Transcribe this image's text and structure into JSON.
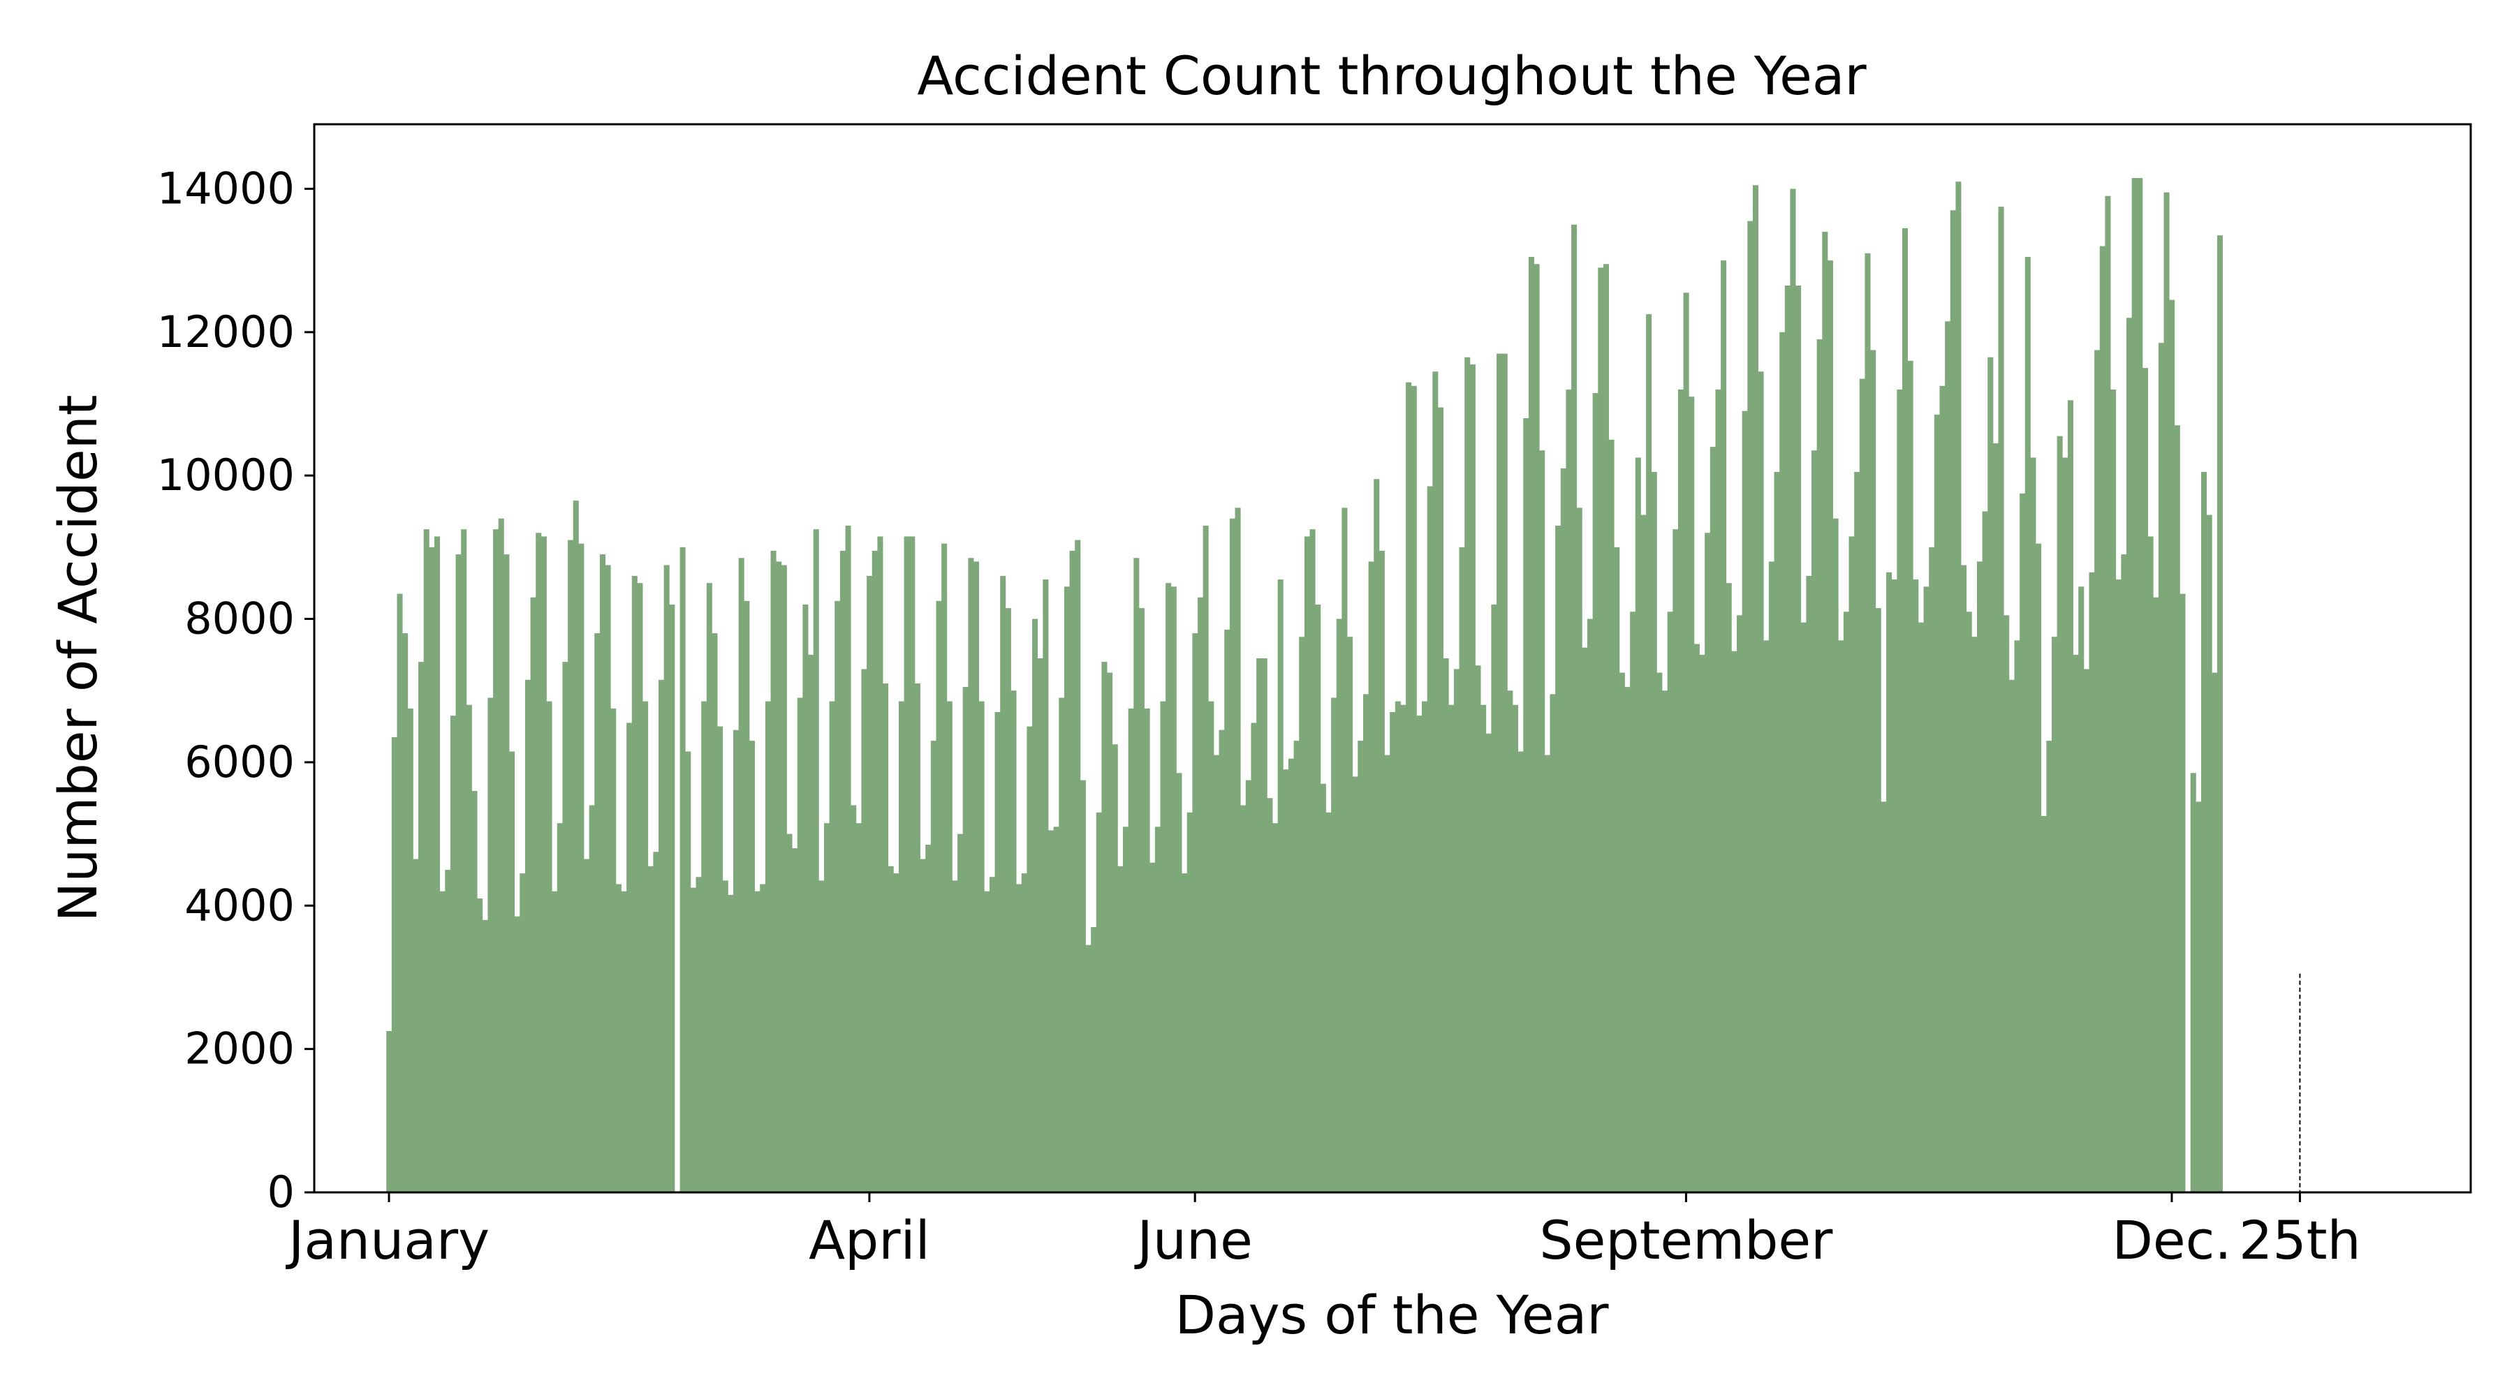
{
  "chart_data": {
    "type": "bar",
    "title": "Accident Count throughout the Year",
    "xlabel": "Days of the Year",
    "ylabel": "Number of Accident",
    "xlim": [
      -13,
      391
    ],
    "ylim": [
      0,
      14900
    ],
    "yticks": [
      0,
      2000,
      4000,
      6000,
      8000,
      10000,
      12000,
      14000
    ],
    "xticks": [
      {
        "day": 1,
        "label": "January"
      },
      {
        "day": 91,
        "label": "April"
      },
      {
        "day": 152,
        "label": "June"
      },
      {
        "day": 244,
        "label": "September"
      },
      {
        "day": 335,
        "label": "Dec."
      },
      {
        "day": 359,
        "label": "25th"
      }
    ],
    "marker_line": {
      "day": 359,
      "value": 3050,
      "style": "dashed"
    },
    "bar_color": "#7ea87a",
    "x_start": 1,
    "values": [
      2250,
      6350,
      8350,
      7800,
      6750,
      4650,
      7400,
      9250,
      9000,
      9150,
      4200,
      4500,
      6650,
      8900,
      9250,
      6800,
      5600,
      4100,
      3800,
      6900,
      9250,
      9400,
      8900,
      6150,
      3850,
      4450,
      7150,
      8300,
      9200,
      9150,
      6850,
      4200,
      5150,
      7400,
      9100,
      9650,
      9050,
      4650,
      5400,
      7800,
      8900,
      8750,
      6750,
      4300,
      4200,
      6550,
      8600,
      8500,
      6850,
      4550,
      4750,
      7150,
      8750,
      8200,
      0,
      9000,
      6150,
      4250,
      4400,
      6850,
      8500,
      7800,
      6500,
      4350,
      4150,
      6450,
      8850,
      8250,
      6300,
      4200,
      4300,
      6850,
      8950,
      8800,
      8750,
      5000,
      4800,
      6900,
      8200,
      7500,
      9250,
      4350,
      5150,
      6850,
      8250,
      8950,
      9300,
      5400,
      5150,
      7300,
      8600,
      8950,
      9150,
      7100,
      4550,
      4450,
      6850,
      9150,
      9150,
      7100,
      4650,
      4850,
      6300,
      8250,
      9050,
      6850,
      4350,
      5000,
      7050,
      8850,
      8800,
      6850,
      4200,
      4400,
      6700,
      8600,
      8150,
      7000,
      4300,
      4450,
      6500,
      8000,
      7450,
      8550,
      5050,
      5100,
      6900,
      8450,
      8950,
      9100,
      5750,
      3450,
      3700,
      5300,
      7400,
      7250,
      6250,
      4550,
      5100,
      6750,
      8850,
      8150,
      6750,
      4600,
      5100,
      6850,
      8500,
      8450,
      5850,
      4450,
      5300,
      7800,
      8300,
      9300,
      6850,
      6100,
      6450,
      7850,
      9400,
      9550,
      5400,
      5750,
      6550,
      7450,
      7450,
      5500,
      5150,
      8550,
      5900,
      6050,
      6300,
      7750,
      9150,
      9250,
      8200,
      5700,
      5300,
      6900,
      8000,
      9550,
      7750,
      5800,
      6300,
      6950,
      8800,
      9950,
      8950,
      6100,
      6700,
      6850,
      6800,
      11300,
      11250,
      6650,
      6850,
      9850,
      11450,
      10950,
      7450,
      6800,
      7300,
      9000,
      11650,
      11550,
      7350,
      6800,
      6400,
      8200,
      11700,
      11700,
      7000,
      6800,
      6150,
      10800,
      13050,
      12950,
      10350,
      6100,
      6950,
      9300,
      10100,
      11200,
      13500,
      9550,
      7600,
      8000,
      11150,
      12900,
      12950,
      10500,
      9000,
      7250,
      7050,
      8100,
      10250,
      9450,
      12250,
      10050,
      7250,
      7000,
      8100,
      9250,
      11200,
      12550,
      11100,
      7650,
      7500,
      9200,
      10400,
      11200,
      13000,
      8500,
      7550,
      8050,
      10900,
      13550,
      14050,
      11450,
      7700,
      8800,
      10050,
      12000,
      12650,
      14000,
      12650,
      7950,
      8600,
      10350,
      11900,
      13400,
      13000,
      9400,
      7700,
      8100,
      9150,
      10050,
      11350,
      13100,
      11750,
      8150,
      5450,
      8650,
      8550,
      11200,
      13450,
      11600,
      8550,
      7950,
      8450,
      9000,
      10850,
      11250,
      12150,
      13700,
      14100,
      8750,
      8100,
      7750,
      8800,
      9500,
      11650,
      10450,
      13750,
      8050,
      7150,
      7700,
      9750,
      13050,
      10250,
      9050,
      5250,
      6300,
      7750,
      10550,
      10250,
      11050,
      7500,
      8450,
      7300,
      8650,
      11750,
      13200,
      13900,
      11200,
      8550,
      8900,
      12200,
      14150,
      14150,
      11500,
      9150,
      8300,
      11850,
      13950,
      12450,
      10700,
      8350,
      0,
      5850,
      5450,
      10050,
      9450,
      7250,
      13350
    ]
  }
}
